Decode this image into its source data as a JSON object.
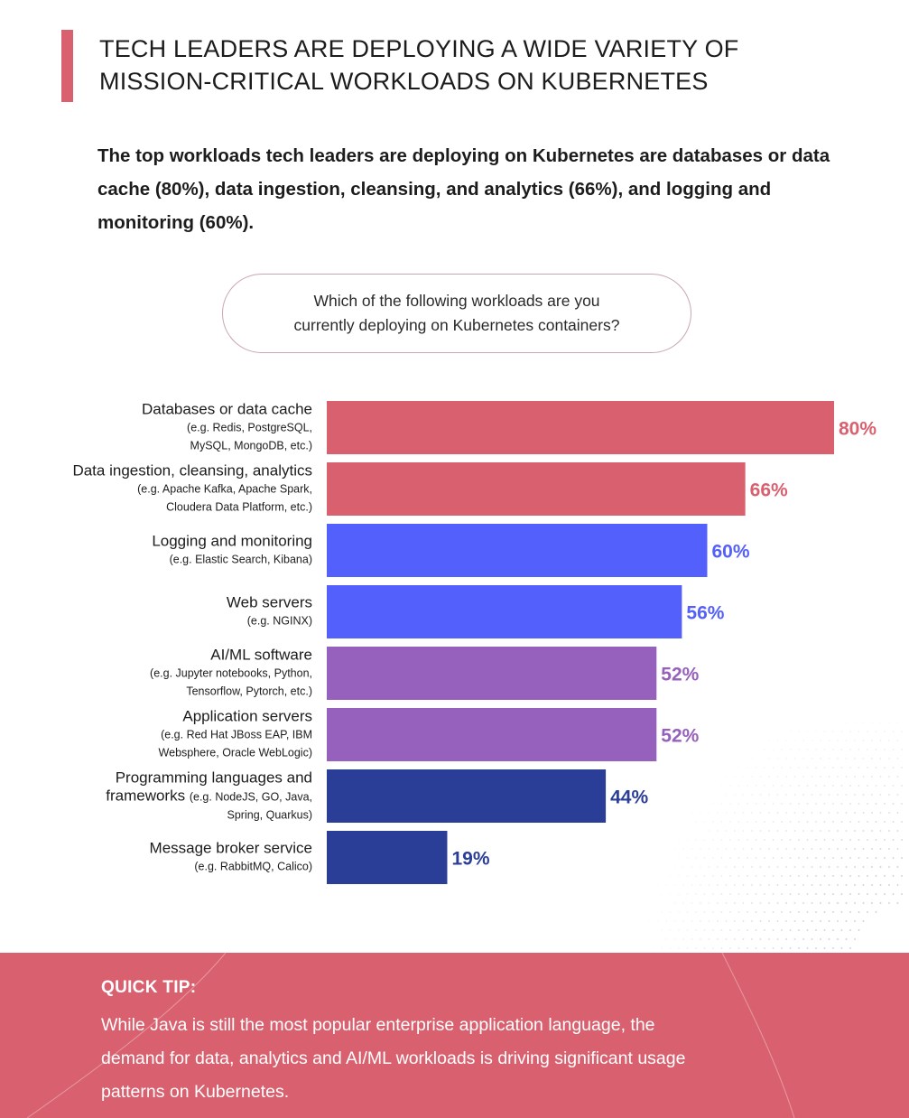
{
  "header": {
    "title_lines": [
      "TECH LEADERS ARE DEPLOYING A WIDE VARIETY OF",
      "MISSION-CRITICAL WORKLOADS ON KUBERNETES"
    ],
    "intro": "The top workloads tech leaders are deploying on Kubernetes are databases or data cache (80%), data ingestion, cleansing, and analytics (66%), and logging and monitoring (60%)."
  },
  "question_lines": [
    "Which of the following workloads are you",
    "currently deploying on Kubernetes containers?"
  ],
  "chart_data": {
    "type": "bar",
    "orientation": "horizontal",
    "xlim": [
      0,
      80
    ],
    "grid": false,
    "value_suffix": "%",
    "categories": [
      {
        "label": "Databases or data cache",
        "example_lines": [
          "(e.g. Redis, PostgreSQL,",
          "MySQL, MongoDB, etc.)"
        ]
      },
      {
        "label": "Data ingestion, cleansing, analytics",
        "example_lines": [
          "(e.g. Apache Kafka, Apache Spark,",
          "Cloudera Data Platform, etc.)"
        ]
      },
      {
        "label": "Logging and monitoring",
        "example_lines": [
          "(e.g. Elastic Search, Kibana)"
        ]
      },
      {
        "label": "Web servers",
        "example_lines": [
          "(e.g. NGINX)"
        ]
      },
      {
        "label": "AI/ML software",
        "example_lines": [
          "(e.g. Jupyter notebooks, Python,",
          "Tensorflow, Pytorch, etc.)"
        ]
      },
      {
        "label": "Application servers",
        "example_lines": [
          "(e.g. Red Hat JBoss EAP, IBM",
          "Websphere, Oracle WebLogic)"
        ]
      },
      {
        "label": "Programming languages and",
        "label2": "frameworks",
        "label2_example": "(e.g. NodeJS, GO, Java,",
        "example_lines": [
          "Spring, Quarkus)"
        ]
      },
      {
        "label": "Message broker service",
        "example_lines": [
          "(e.g. RabbitMQ, Calico)"
        ]
      }
    ],
    "values": [
      80,
      66,
      60,
      56,
      52,
      52,
      44,
      19
    ],
    "colors": [
      "#d9616f",
      "#d9616f",
      "#5460fb",
      "#5460fb",
      "#9660bd",
      "#9660bd",
      "#2a3e98",
      "#2a3e98"
    ]
  },
  "tip": {
    "heading": "QUICK TIP:",
    "lines": [
      "While Java is still the most popular enterprise application language, the",
      "demand for data, analytics and AI/ML workloads is driving significant usage",
      "patterns on Kubernetes."
    ]
  }
}
